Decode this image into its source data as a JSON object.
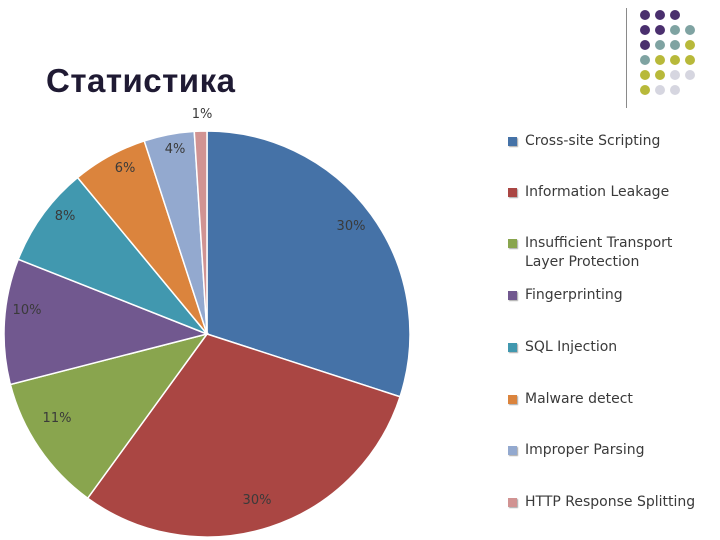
{
  "slide": {
    "title": "Статистика"
  },
  "colors": {
    "title": "#1f1a33",
    "deco_dots": [
      "#4a2f6e",
      "#7fa3a2",
      "#b8b93a",
      "#d6d6e0"
    ]
  },
  "chart_data": {
    "type": "pie",
    "title": "",
    "legend_position": "right",
    "slices": [
      {
        "name": "Cross-site Scripting",
        "value": 30,
        "label": "30%",
        "color": "#4572a7"
      },
      {
        "name": "Information Leakage",
        "value": 30,
        "label": "30%",
        "color": "#aa4643"
      },
      {
        "name": "Insufficient Transport Layer Protection",
        "value": 11,
        "label": "11%",
        "color": "#89a54e"
      },
      {
        "name": "Fingerprinting",
        "value": 10,
        "label": "10%",
        "color": "#71588f"
      },
      {
        "name": "SQL Injection",
        "value": 8,
        "label": "8%",
        "color": "#4198af"
      },
      {
        "name": "Malware detect",
        "value": 6,
        "label": "6%",
        "color": "#db843d"
      },
      {
        "name": "Improper Parsing",
        "value": 4,
        "label": "4%",
        "color": "#93a9cf"
      },
      {
        "name": "HTTP Response Splitting",
        "value": 1,
        "label": "1%",
        "color": "#d19392"
      }
    ]
  }
}
